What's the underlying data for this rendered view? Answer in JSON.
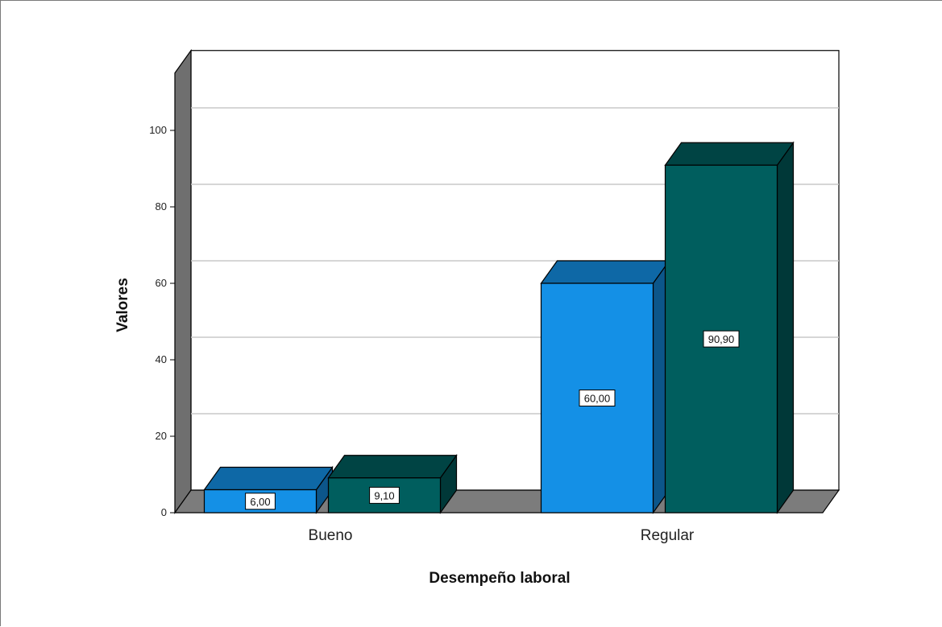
{
  "chart_data": {
    "type": "bar",
    "title": "",
    "xlabel": "Desempeño laboral",
    "ylabel": "Valores",
    "categories": [
      "Bueno",
      "Regular"
    ],
    "series": [
      {
        "values": [
          6.0,
          60.0
        ],
        "value_labels": [
          "6,00",
          "60,00"
        ],
        "color": "#1490e6"
      },
      {
        "values": [
          9.1,
          90.9
        ],
        "value_labels": [
          "9,10",
          "90,90"
        ],
        "color": "#005e5e"
      }
    ],
    "ylim": [
      0,
      115
    ],
    "yticks": [
      0,
      20,
      40,
      60,
      80,
      100
    ],
    "ytick_labels": [
      "0",
      "20",
      "40",
      "60",
      "80",
      "100"
    ],
    "grid": true,
    "legend": "none",
    "style": "3d",
    "colors": {
      "wall_side": "#6f6f6f",
      "floor": "#7c7c7c",
      "gridline": "#c8c8c8"
    }
  }
}
